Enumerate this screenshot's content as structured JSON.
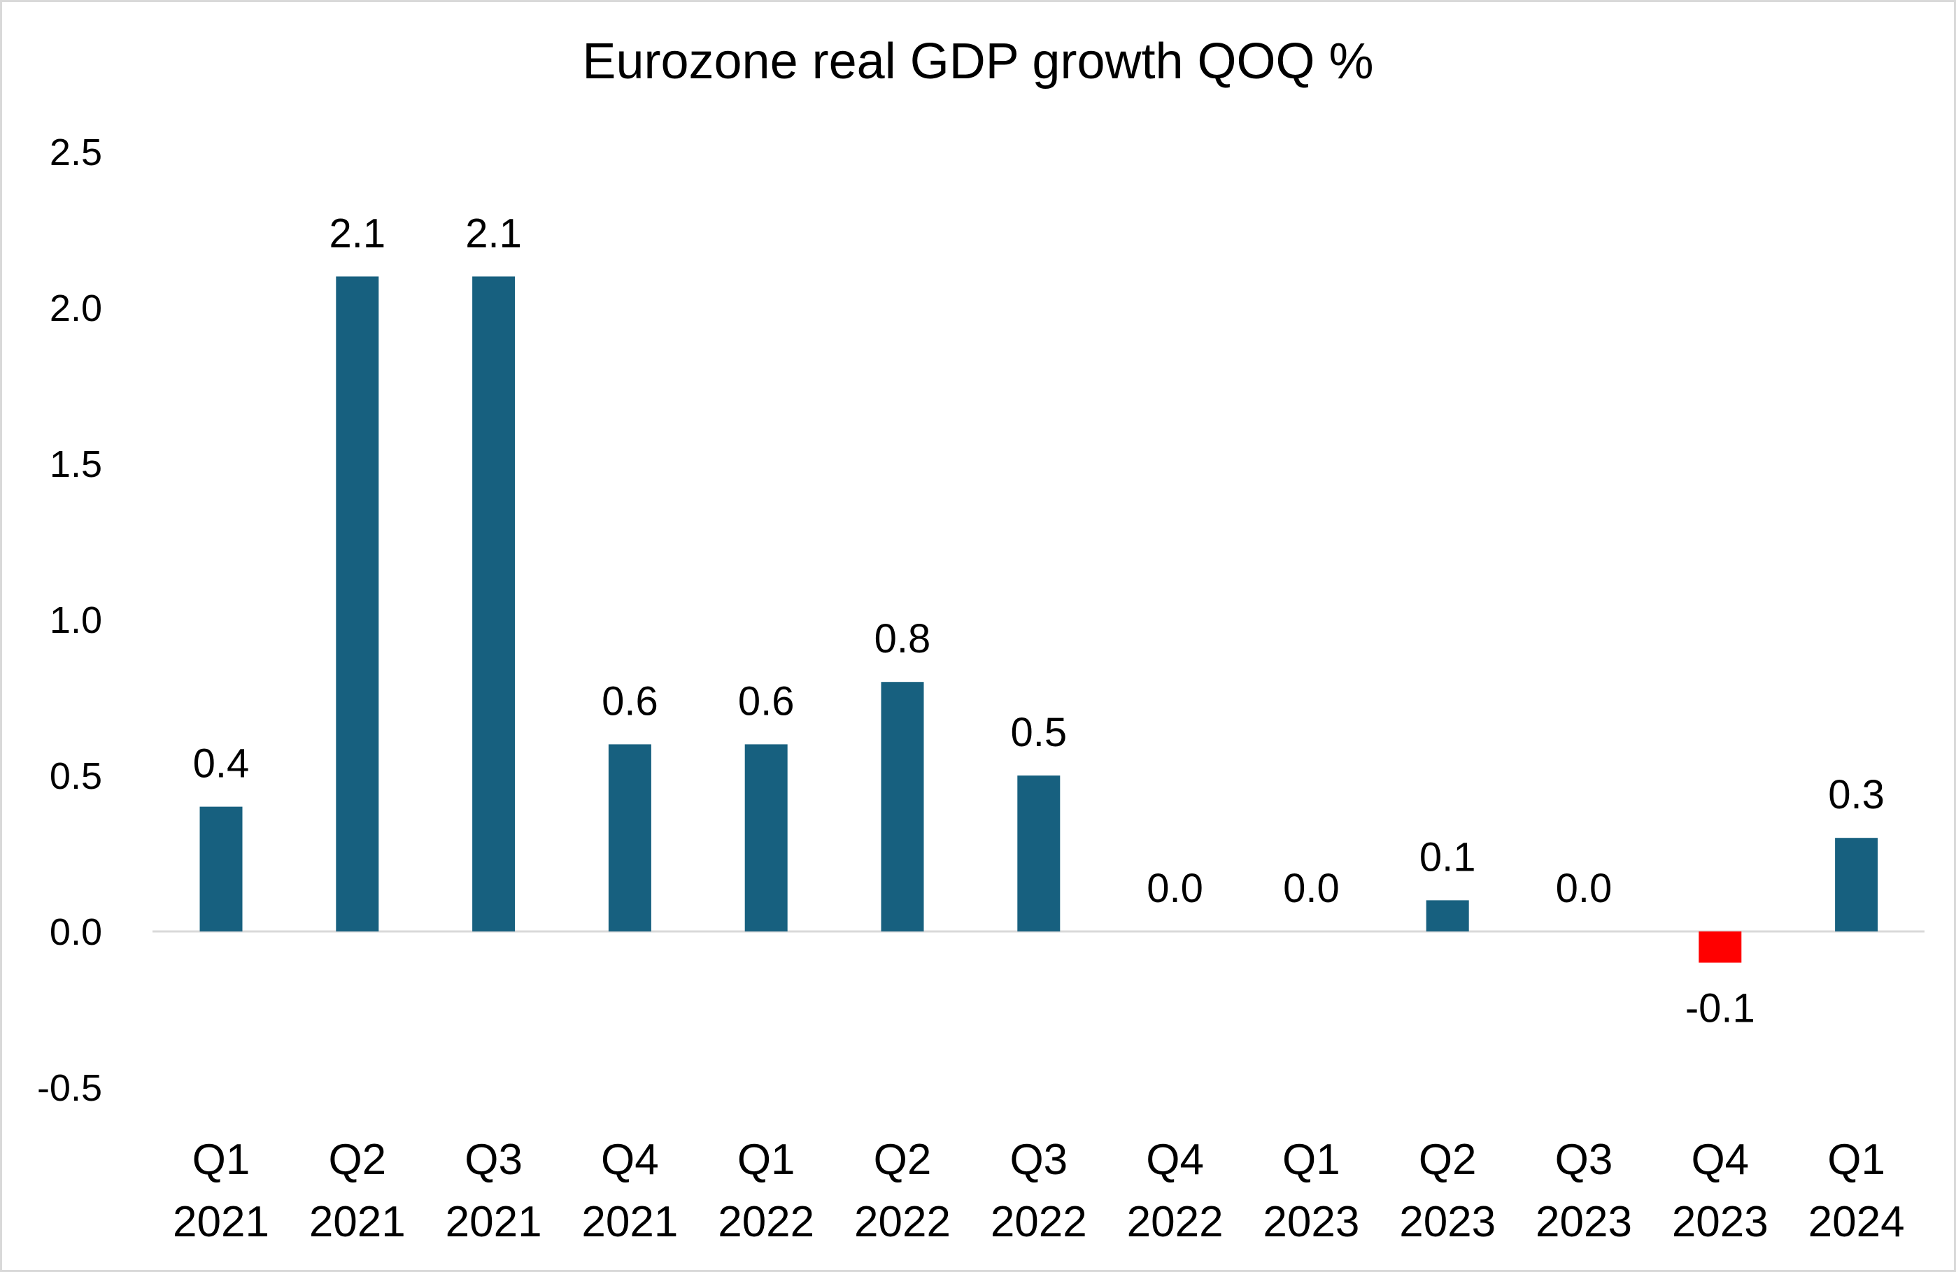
{
  "chart_data": {
    "type": "bar",
    "title": "Eurozone real GDP growth QOQ %",
    "xlabel": "",
    "ylabel": "",
    "categories": [
      [
        "Q1",
        "2021"
      ],
      [
        "Q2",
        "2021"
      ],
      [
        "Q3",
        "2021"
      ],
      [
        "Q4",
        "2021"
      ],
      [
        "Q1",
        "2022"
      ],
      [
        "Q2",
        "2022"
      ],
      [
        "Q3",
        "2022"
      ],
      [
        "Q4",
        "2022"
      ],
      [
        "Q1",
        "2023"
      ],
      [
        "Q2",
        "2023"
      ],
      [
        "Q3",
        "2023"
      ],
      [
        "Q4",
        "2023"
      ],
      [
        "Q1",
        "2024"
      ]
    ],
    "values": [
      0.4,
      2.1,
      2.1,
      0.6,
      0.6,
      0.8,
      0.5,
      0.0,
      0.0,
      0.1,
      0.0,
      -0.1,
      0.3
    ],
    "data_labels": [
      "0.4",
      "2.1",
      "2.1",
      "0.6",
      "0.6",
      "0.8",
      "0.5",
      "0.0",
      "0.0",
      "0.1",
      "0.0",
      "-0.1",
      "0.3"
    ],
    "ylim": [
      -0.5,
      2.5
    ],
    "yticks": [
      "-0.5",
      "0.0",
      "0.5",
      "1.0",
      "1.5",
      "2.0",
      "2.5"
    ],
    "grid": false,
    "legend": "none",
    "colors": {
      "positive": "#17607F",
      "negative": "#FF0000",
      "axis": "#D9D9D9"
    }
  }
}
